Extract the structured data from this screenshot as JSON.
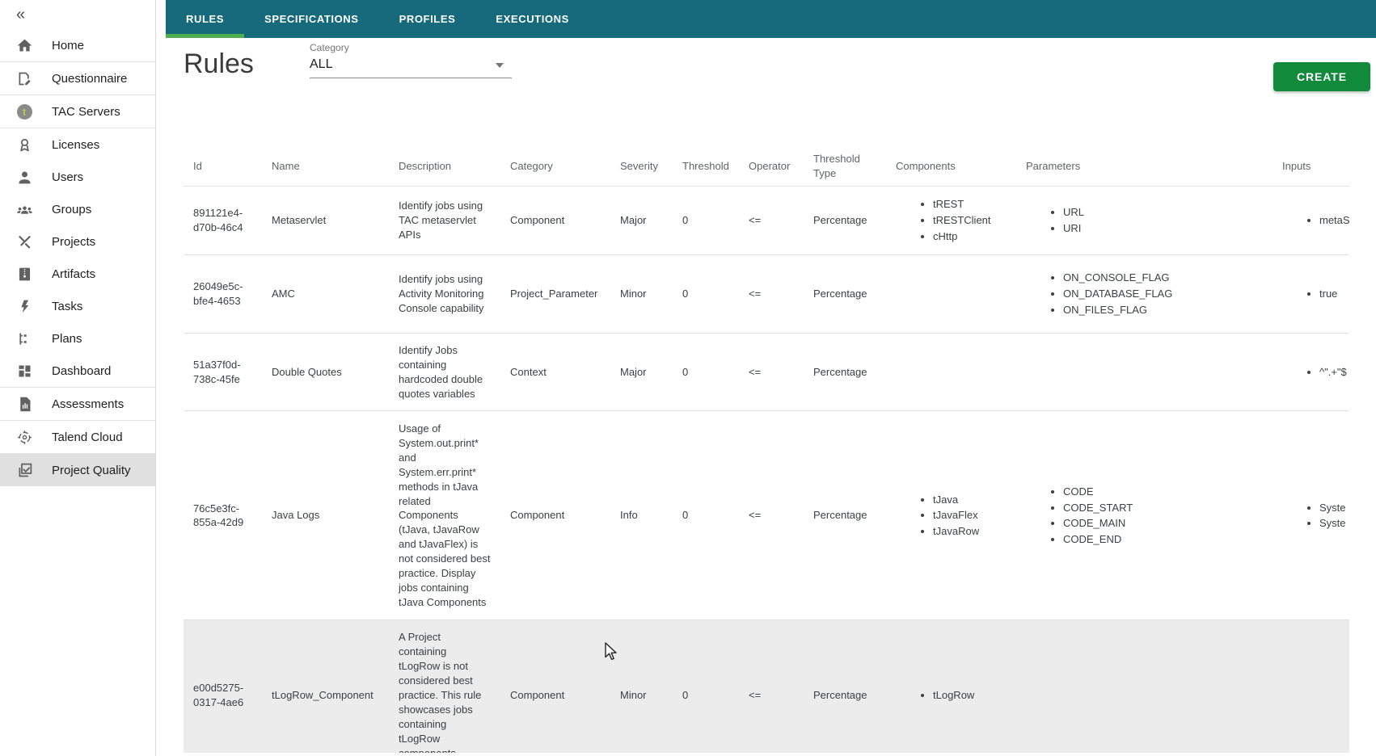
{
  "sidebar": {
    "collapse_glyph": "«",
    "items": [
      {
        "label": "Home",
        "icon": "home"
      },
      {
        "label": "Questionnaire",
        "icon": "questionnaire",
        "divider_before": true
      },
      {
        "label": "TAC Servers",
        "icon": "tac-servers",
        "divider_before": true,
        "badge": "t"
      },
      {
        "label": "Licenses",
        "icon": "licenses",
        "divider_before": true
      },
      {
        "label": "Users",
        "icon": "users"
      },
      {
        "label": "Groups",
        "icon": "groups"
      },
      {
        "label": "Projects",
        "icon": "projects"
      },
      {
        "label": "Artifacts",
        "icon": "artifacts"
      },
      {
        "label": "Tasks",
        "icon": "tasks"
      },
      {
        "label": "Plans",
        "icon": "plans"
      },
      {
        "label": "Dashboard",
        "icon": "dashboard"
      },
      {
        "label": "Assessments",
        "icon": "assessments",
        "divider_before": true
      },
      {
        "label": "Talend Cloud",
        "icon": "talend-cloud",
        "divider_before": true
      },
      {
        "label": "Project Quality",
        "icon": "project-quality",
        "divider_before": true,
        "selected": true
      }
    ]
  },
  "topnav": {
    "tabs": [
      {
        "label": "RULES",
        "active": true
      },
      {
        "label": "SPECIFICATIONS",
        "active": false
      },
      {
        "label": "PROFILES",
        "active": false
      },
      {
        "label": "EXECUTIONS",
        "active": false
      }
    ]
  },
  "toolbar": {
    "title": "Rules",
    "category_label": "Category",
    "category_value": "ALL",
    "create_label": "CREATE"
  },
  "table": {
    "columns": [
      {
        "key": "id",
        "label": "Id"
      },
      {
        "key": "name",
        "label": "Name"
      },
      {
        "key": "description",
        "label": "Description"
      },
      {
        "key": "category",
        "label": "Category"
      },
      {
        "key": "severity",
        "label": "Severity"
      },
      {
        "key": "threshold",
        "label": "Threshold"
      },
      {
        "key": "operator",
        "label": "Operator"
      },
      {
        "key": "threshold_type",
        "label": "Threshold Type"
      },
      {
        "key": "components",
        "label": "Components"
      },
      {
        "key": "parameters",
        "label": "Parameters"
      },
      {
        "key": "inputs",
        "label": "Inputs"
      }
    ],
    "rows": [
      {
        "id": "891121e4-d70b-46c4",
        "name": "Metaservlet",
        "description": "Identify jobs using TAC metaservlet APIs",
        "category": "Component",
        "severity": "Major",
        "threshold": "0",
        "operator": "<=",
        "threshold_type": "Percentage",
        "components": [
          "tREST",
          "tRESTClient",
          "cHttp"
        ],
        "parameters": [
          "URL",
          "URI"
        ],
        "inputs": [
          "metaS"
        ],
        "highlighted": false
      },
      {
        "id": "26049e5c-bfe4-4653",
        "name": "AMC",
        "description": "Identify jobs using Activity Monitoring Console capability",
        "category": "Project_Parameter",
        "severity": "Minor",
        "threshold": "0",
        "operator": "<=",
        "threshold_type": "Percentage",
        "components": [],
        "parameters": [
          "ON_CONSOLE_FLAG",
          "ON_DATABASE_FLAG",
          "ON_FILES_FLAG"
        ],
        "inputs": [
          "true"
        ],
        "highlighted": false
      },
      {
        "id": "51a37f0d-738c-45fe",
        "name": "Double Quotes",
        "description": "Identify Jobs containing hardcoded double quotes variables",
        "category": "Context",
        "severity": "Major",
        "threshold": "0",
        "operator": "<=",
        "threshold_type": "Percentage",
        "components": [],
        "parameters": [],
        "inputs": [
          "^\".+\"$"
        ],
        "highlighted": false
      },
      {
        "id": "76c5e3fc-855a-42d9",
        "name": "Java Logs",
        "description": "Usage of System.out.print* and System.err.print* methods in tJava related Components (tJava, tJavaRow and tJavaFlex) is not considered best practice. Display jobs containing tJava Components",
        "category": "Component",
        "severity": "Info",
        "threshold": "0",
        "operator": "<=",
        "threshold_type": "Percentage",
        "components": [
          "tJava",
          "tJavaFlex",
          "tJavaRow"
        ],
        "parameters": [
          "CODE",
          "CODE_START",
          "CODE_MAIN",
          "CODE_END"
        ],
        "inputs": [
          "Syste",
          "Syste"
        ],
        "highlighted": false
      },
      {
        "id": "e00d5275-0317-4ae6",
        "name": "tLogRow_Component",
        "description": "A Project containing tLogRow is not considered best practice. This rule showcases jobs containing tLogRow components",
        "category": "Component",
        "severity": "Minor",
        "threshold": "0",
        "operator": "<=",
        "threshold_type": "Percentage",
        "components": [
          "tLogRow"
        ],
        "parameters": [],
        "inputs": [],
        "highlighted": true
      }
    ]
  },
  "colors": {
    "topbar_teal": "#166a7c",
    "active_tab_green": "#4caf50",
    "create_button_green": "#128a3c",
    "row_highlight_gray": "#ececec",
    "sidebar_selected_gray": "#e0e0e0"
  }
}
